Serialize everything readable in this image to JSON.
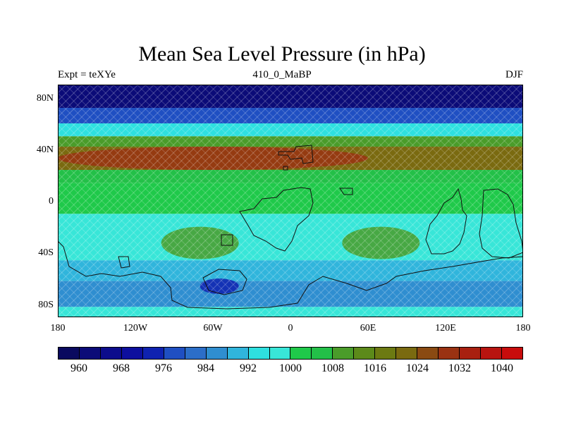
{
  "title": "Mean Sea Level Pressure (in hPa)",
  "subtitle_left": "Expt = teXYe",
  "subtitle_center": "410_0_MaBP",
  "subtitle_right": "DJF",
  "lat_labels": [
    "80N",
    "40N",
    "0",
    "40S",
    "80S"
  ],
  "lon_labels": [
    "180",
    "120W",
    "60W",
    "0",
    "60E",
    "120E",
    "180"
  ],
  "colorbar": {
    "colors": [
      "#0a0a5f",
      "#0b0b78",
      "#0c0c8c",
      "#0d0f9e",
      "#0f22b0",
      "#1f4fc2",
      "#2c6ec8",
      "#2f8ed0",
      "#30b5dc",
      "#2ee0e0",
      "#38e6d8",
      "#1fc94a",
      "#23c048",
      "#4a9c2a",
      "#5c8a1a",
      "#6c7a12",
      "#7a6a10",
      "#8a4a12",
      "#9a3212",
      "#a82010",
      "#b81410",
      "#c80c0c"
    ],
    "labels": [
      "960",
      "968",
      "976",
      "984",
      "992",
      "1000",
      "1008",
      "1016",
      "1024",
      "1032",
      "1040"
    ]
  },
  "map_data": {
    "type": "contour-map",
    "projection": "cylindrical-equidistant",
    "variable": "mean sea level pressure",
    "units": "hPa",
    "lon_range": [
      -180,
      180
    ],
    "lat_range": [
      -90,
      90
    ],
    "levels": [
      960,
      964,
      968,
      972,
      976,
      980,
      984,
      988,
      992,
      996,
      1000,
      1004,
      1008,
      1012,
      1016,
      1020,
      1024,
      1028,
      1032,
      1036,
      1040
    ],
    "zonal_bands": [
      {
        "lat": [
          72,
          90
        ],
        "value": 963
      },
      {
        "lat": [
          60,
          72
        ],
        "value": 976
      },
      {
        "lat": [
          50,
          60
        ],
        "value": 994
      },
      {
        "lat": [
          42,
          50
        ],
        "value": 1008
      },
      {
        "lat": [
          24,
          42
        ],
        "value": 1022
      },
      {
        "lat": [
          14,
          24
        ],
        "value": 1006
      },
      {
        "lat": [
          -10,
          14
        ],
        "value": 1000
      },
      {
        "lat": [
          -46,
          -10
        ],
        "value": 998
      },
      {
        "lat": [
          -62,
          -46
        ],
        "value": 990
      },
      {
        "lat": [
          -82,
          -62
        ],
        "value": 986
      },
      {
        "lat": [
          -90,
          -82
        ],
        "value": 998
      }
    ],
    "features": [
      {
        "region": "north-pacific-atlantic",
        "lon": [
          -180,
          60
        ],
        "lat": [
          24,
          42
        ],
        "value": 1028,
        "note": "subtropical high"
      },
      {
        "region": "south-subtropics-west",
        "lon": [
          -100,
          -40
        ],
        "lat": [
          -45,
          -20
        ],
        "value": 1008
      },
      {
        "region": "south-subtropics-east",
        "lon": [
          40,
          100
        ],
        "lat": [
          -45,
          -20
        ],
        "value": 1008
      },
      {
        "region": "southern-low",
        "lon": [
          -70,
          -40
        ],
        "lat": [
          -72,
          -60
        ],
        "value": 972
      }
    ]
  }
}
